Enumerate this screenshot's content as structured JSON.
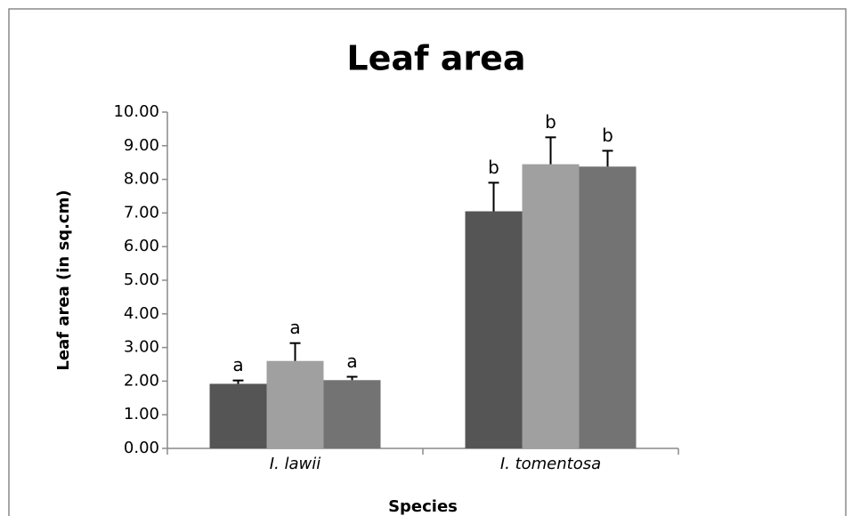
{
  "chart_data": {
    "type": "bar",
    "title": "Leaf area",
    "x_label": "Species",
    "y_label": "Leaf area (in sq.cm)",
    "categories": [
      "I. lawii",
      "I. tomentosa"
    ],
    "series": [
      {
        "color": "#555555",
        "values": [
          1.92,
          7.05
        ],
        "errors": [
          0.1,
          0.85
        ],
        "letters": [
          "a",
          "b"
        ]
      },
      {
        "color": "#a0a0a0",
        "values": [
          2.6,
          8.45
        ],
        "errors": [
          0.53,
          0.8
        ],
        "letters": [
          "a",
          "b"
        ]
      },
      {
        "color": "#737373",
        "values": [
          2.03,
          8.38
        ],
        "errors": [
          0.1,
          0.47
        ],
        "letters": [
          "a",
          "b"
        ]
      }
    ],
    "ylim": [
      0,
      10
    ],
    "yticks": [
      {
        "value": 0,
        "label": "0.00"
      },
      {
        "value": 1,
        "label": "1.00"
      },
      {
        "value": 2,
        "label": "2.00"
      },
      {
        "value": 3,
        "label": "3.00"
      },
      {
        "value": 4,
        "label": "4.00"
      },
      {
        "value": 5,
        "label": "5.00"
      },
      {
        "value": 6,
        "label": "6.00"
      },
      {
        "value": 7,
        "label": "7.00"
      },
      {
        "value": 8,
        "label": "8.00"
      },
      {
        "value": 9,
        "label": "9.00"
      },
      {
        "value": 10,
        "label": "10.00"
      }
    ],
    "grid": false
  }
}
